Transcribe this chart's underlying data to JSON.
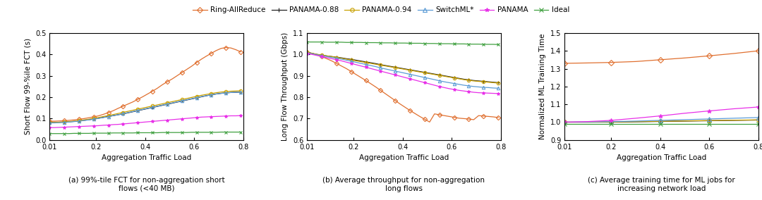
{
  "x_ticks": [
    0.01,
    0.2,
    0.4,
    0.6,
    0.8
  ],
  "x_label": "Aggregation Traffic Load",
  "series_colors": {
    "Ring-AllReduce": "#E07030",
    "PANAMA-0.88": "#222222",
    "PANAMA-0.94": "#C8A000",
    "SwitchML*": "#5B9BD5",
    "PANAMA": "#E830E8",
    "Ideal": "#40A040"
  },
  "series_markers": {
    "Ring-AllReduce": "D",
    "PANAMA-0.88": "+",
    "PANAMA-0.94": "o",
    "SwitchML*": "^",
    "PANAMA": "*",
    "Ideal": "x"
  },
  "series_order": [
    "Ring-AllReduce",
    "PANAMA-0.88",
    "PANAMA-0.94",
    "SwitchML*",
    "PANAMA",
    "Ideal"
  ],
  "subplot_a": {
    "ylabel": "Short Flow 99-%ile FCT (s)",
    "ylim": [
      0,
      0.5
    ],
    "yticks": [
      0,
      0.1,
      0.2,
      0.3,
      0.4,
      0.5
    ],
    "caption": "(a) 99%-tile FCT for non-aggregation short\nflows (<40 MB)",
    "x": [
      0.01,
      0.03,
      0.05,
      0.07,
      0.09,
      0.11,
      0.13,
      0.15,
      0.17,
      0.19,
      0.21,
      0.23,
      0.25,
      0.27,
      0.29,
      0.31,
      0.33,
      0.35,
      0.37,
      0.39,
      0.41,
      0.43,
      0.45,
      0.47,
      0.49,
      0.51,
      0.53,
      0.55,
      0.57,
      0.59,
      0.61,
      0.63,
      0.65,
      0.67,
      0.69,
      0.71,
      0.73,
      0.75,
      0.77,
      0.79
    ],
    "Ring-AllReduce": [
      0.088,
      0.088,
      0.089,
      0.09,
      0.092,
      0.094,
      0.097,
      0.1,
      0.104,
      0.108,
      0.113,
      0.12,
      0.128,
      0.137,
      0.148,
      0.158,
      0.168,
      0.178,
      0.19,
      0.202,
      0.215,
      0.228,
      0.242,
      0.258,
      0.272,
      0.285,
      0.3,
      0.315,
      0.33,
      0.345,
      0.362,
      0.378,
      0.392,
      0.405,
      0.418,
      0.428,
      0.432,
      0.43,
      0.422,
      0.412
    ],
    "PANAMA-0.88": [
      0.082,
      0.082,
      0.083,
      0.084,
      0.085,
      0.087,
      0.089,
      0.092,
      0.095,
      0.098,
      0.102,
      0.106,
      0.11,
      0.114,
      0.118,
      0.122,
      0.127,
      0.132,
      0.137,
      0.142,
      0.147,
      0.152,
      0.157,
      0.162,
      0.167,
      0.172,
      0.177,
      0.182,
      0.187,
      0.192,
      0.197,
      0.202,
      0.207,
      0.211,
      0.215,
      0.218,
      0.22,
      0.222,
      0.223,
      0.224
    ],
    "PANAMA-0.94": [
      0.082,
      0.082,
      0.083,
      0.084,
      0.086,
      0.088,
      0.091,
      0.094,
      0.097,
      0.101,
      0.105,
      0.11,
      0.114,
      0.119,
      0.124,
      0.129,
      0.134,
      0.139,
      0.144,
      0.149,
      0.154,
      0.159,
      0.164,
      0.169,
      0.174,
      0.179,
      0.184,
      0.189,
      0.194,
      0.199,
      0.204,
      0.209,
      0.213,
      0.217,
      0.221,
      0.224,
      0.226,
      0.228,
      0.229,
      0.23
    ],
    "SwitchML*": [
      0.08,
      0.08,
      0.081,
      0.082,
      0.084,
      0.086,
      0.088,
      0.091,
      0.094,
      0.097,
      0.101,
      0.105,
      0.109,
      0.114,
      0.118,
      0.123,
      0.128,
      0.133,
      0.138,
      0.143,
      0.148,
      0.153,
      0.158,
      0.163,
      0.168,
      0.173,
      0.178,
      0.183,
      0.188,
      0.193,
      0.198,
      0.203,
      0.207,
      0.211,
      0.215,
      0.218,
      0.22,
      0.222,
      0.223,
      0.224
    ],
    "PANAMA": [
      0.058,
      0.058,
      0.059,
      0.06,
      0.061,
      0.062,
      0.063,
      0.064,
      0.065,
      0.066,
      0.067,
      0.069,
      0.07,
      0.072,
      0.073,
      0.075,
      0.077,
      0.079,
      0.081,
      0.083,
      0.085,
      0.087,
      0.089,
      0.091,
      0.093,
      0.095,
      0.097,
      0.099,
      0.101,
      0.103,
      0.105,
      0.107,
      0.108,
      0.109,
      0.11,
      0.111,
      0.112,
      0.113,
      0.113,
      0.114
    ],
    "Ideal": [
      0.03,
      0.03,
      0.03,
      0.03,
      0.03,
      0.031,
      0.031,
      0.031,
      0.031,
      0.032,
      0.032,
      0.032,
      0.032,
      0.033,
      0.033,
      0.033,
      0.033,
      0.033,
      0.034,
      0.034,
      0.034,
      0.034,
      0.034,
      0.035,
      0.035,
      0.035,
      0.035,
      0.035,
      0.035,
      0.036,
      0.036,
      0.036,
      0.036,
      0.036,
      0.036,
      0.037,
      0.037,
      0.037,
      0.037,
      0.037
    ]
  },
  "subplot_b": {
    "ylabel": "Long Flow Throughput (Gbps)",
    "ylim": [
      0.6,
      1.1
    ],
    "yticks": [
      0.6,
      0.7,
      0.8,
      0.9,
      1.0,
      1.1
    ],
    "caption": "(b) Average throughput for non-aggregation\nlong flows",
    "x": [
      0.01,
      0.03,
      0.05,
      0.07,
      0.09,
      0.11,
      0.13,
      0.15,
      0.17,
      0.19,
      0.21,
      0.23,
      0.25,
      0.27,
      0.29,
      0.31,
      0.33,
      0.35,
      0.37,
      0.39,
      0.41,
      0.43,
      0.45,
      0.47,
      0.49,
      0.51,
      0.53,
      0.55,
      0.57,
      0.59,
      0.61,
      0.63,
      0.65,
      0.67,
      0.69,
      0.71,
      0.73,
      0.75,
      0.77,
      0.79
    ],
    "Ring-AllReduce": [
      1.01,
      1.005,
      0.998,
      0.99,
      0.98,
      0.97,
      0.958,
      0.946,
      0.934,
      0.92,
      0.906,
      0.892,
      0.878,
      0.863,
      0.848,
      0.832,
      0.816,
      0.8,
      0.784,
      0.768,
      0.753,
      0.738,
      0.724,
      0.71,
      0.697,
      0.684,
      0.722,
      0.718,
      0.714,
      0.71,
      0.706,
      0.702,
      0.7,
      0.698,
      0.695,
      0.714,
      0.712,
      0.71,
      0.708,
      0.705
    ],
    "PANAMA-0.88": [
      1.01,
      1.005,
      1.0,
      0.997,
      0.993,
      0.99,
      0.987,
      0.984,
      0.98,
      0.977,
      0.973,
      0.969,
      0.965,
      0.961,
      0.957,
      0.952,
      0.948,
      0.944,
      0.94,
      0.936,
      0.932,
      0.928,
      0.924,
      0.92,
      0.916,
      0.912,
      0.908,
      0.904,
      0.9,
      0.896,
      0.892,
      0.888,
      0.884,
      0.881,
      0.878,
      0.876,
      0.874,
      0.872,
      0.87,
      0.868
    ],
    "PANAMA-0.94": [
      1.01,
      1.005,
      1.0,
      0.997,
      0.993,
      0.99,
      0.986,
      0.982,
      0.978,
      0.974,
      0.97,
      0.966,
      0.962,
      0.958,
      0.954,
      0.95,
      0.946,
      0.942,
      0.938,
      0.934,
      0.93,
      0.926,
      0.922,
      0.918,
      0.914,
      0.91,
      0.906,
      0.902,
      0.898,
      0.894,
      0.89,
      0.886,
      0.882,
      0.879,
      0.876,
      0.874,
      0.872,
      0.87,
      0.868,
      0.866
    ],
    "SwitchML*": [
      1.008,
      1.003,
      0.998,
      0.994,
      0.99,
      0.986,
      0.982,
      0.978,
      0.973,
      0.968,
      0.963,
      0.958,
      0.953,
      0.948,
      0.943,
      0.937,
      0.932,
      0.927,
      0.922,
      0.917,
      0.912,
      0.907,
      0.902,
      0.897,
      0.892,
      0.887,
      0.882,
      0.877,
      0.872,
      0.868,
      0.864,
      0.86,
      0.856,
      0.853,
      0.85,
      0.848,
      0.846,
      0.845,
      0.843,
      0.842
    ],
    "PANAMA": [
      1.005,
      1.0,
      0.995,
      0.99,
      0.985,
      0.98,
      0.975,
      0.97,
      0.964,
      0.958,
      0.952,
      0.946,
      0.94,
      0.934,
      0.928,
      0.922,
      0.916,
      0.91,
      0.904,
      0.898,
      0.892,
      0.886,
      0.88,
      0.874,
      0.868,
      0.862,
      0.856,
      0.85,
      0.845,
      0.84,
      0.836,
      0.832,
      0.829,
      0.826,
      0.823,
      0.821,
      0.82,
      0.819,
      0.818,
      0.817
    ],
    "Ideal": [
      1.058,
      1.058,
      1.058,
      1.058,
      1.057,
      1.057,
      1.057,
      1.057,
      1.056,
      1.056,
      1.056,
      1.056,
      1.055,
      1.055,
      1.055,
      1.054,
      1.054,
      1.054,
      1.053,
      1.053,
      1.053,
      1.052,
      1.052,
      1.052,
      1.051,
      1.051,
      1.051,
      1.05,
      1.05,
      1.05,
      1.049,
      1.049,
      1.049,
      1.048,
      1.048,
      1.048,
      1.047,
      1.047,
      1.047,
      1.046
    ]
  },
  "subplot_c": {
    "ylabel": "Normalized ML Training Time",
    "ylim": [
      0.9,
      1.5
    ],
    "yticks": [
      0.9,
      1.0,
      1.1,
      1.2,
      1.3,
      1.4,
      1.5
    ],
    "caption": "(c) Average training time for ML jobs for\nincreasing network load",
    "x": [
      0.01,
      0.1,
      0.2,
      0.3,
      0.4,
      0.5,
      0.6,
      0.7,
      0.8
    ],
    "Ring-AllReduce": [
      1.33,
      1.332,
      1.335,
      1.34,
      1.35,
      1.36,
      1.372,
      1.385,
      1.4
    ],
    "PANAMA-0.88": [
      1.0,
      1.0,
      1.0,
      1.002,
      1.004,
      1.006,
      1.008,
      1.01,
      1.012
    ],
    "PANAMA-0.94": [
      1.0,
      1.0,
      1.001,
      1.003,
      1.005,
      1.007,
      1.009,
      1.011,
      1.013
    ],
    "SwitchML*": [
      1.0,
      1.001,
      1.003,
      1.006,
      1.01,
      1.014,
      1.018,
      1.022,
      1.026
    ],
    "PANAMA": [
      1.0,
      1.003,
      1.01,
      1.022,
      1.035,
      1.05,
      1.063,
      1.075,
      1.085
    ],
    "Ideal": [
      0.99,
      0.99,
      0.99,
      0.99,
      0.99,
      0.99,
      0.99,
      0.99,
      0.99
    ]
  },
  "caption_fontsize": 7.5,
  "tick_fontsize": 7,
  "label_fontsize": 7.5,
  "legend_fontsize": 7.5,
  "background": "#ffffff"
}
